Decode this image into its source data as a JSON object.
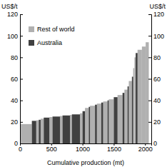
{
  "chart_data": {
    "type": "bar",
    "y_label": "US$/t",
    "x_label": "Cumulative production (mt)",
    "bins": [
      0,
      190,
      260,
      300,
      330,
      380,
      470,
      520,
      640,
      680,
      800,
      830,
      960,
      1000,
      1040,
      1100,
      1120,
      1200,
      1230,
      1300,
      1330,
      1400,
      1420,
      1500,
      1560,
      1640,
      1670,
      1720,
      1740,
      1790,
      1810,
      1830,
      1850,
      1880,
      1950,
      2010,
      2060
    ],
    "series": [
      {
        "name": "Rest of world",
        "color": "#b0b0b0",
        "values": [
          18,
          null,
          21.5,
          null,
          23,
          null,
          24.5,
          null,
          25.5,
          null,
          26.5,
          null,
          28,
          null,
          33,
          null,
          35,
          null,
          37,
          null,
          39,
          null,
          41,
          null,
          45,
          null,
          50,
          null,
          58,
          null,
          70,
          80,
          null,
          87,
          90,
          94
        ]
      },
      {
        "name": "Australia",
        "color": "#404040",
        "values": [
          null,
          21,
          null,
          22,
          null,
          24,
          null,
          25,
          null,
          26,
          null,
          27,
          null,
          30,
          null,
          34,
          null,
          36,
          null,
          38,
          null,
          40,
          null,
          43,
          null,
          47,
          null,
          53,
          null,
          62,
          null,
          null,
          84,
          null,
          null,
          null
        ]
      }
    ],
    "xlim": [
      0,
      2100
    ],
    "xticks": [
      0,
      500,
      1000,
      1500,
      2000
    ],
    "ylim": [
      0,
      120
    ],
    "yticks": [
      0,
      20,
      40,
      60,
      80,
      100,
      120
    ],
    "legend": "upper left"
  }
}
